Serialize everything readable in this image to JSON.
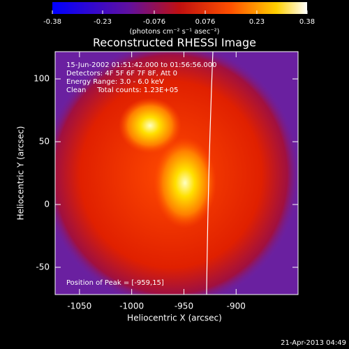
{
  "chart_data": {
    "type": "image",
    "title": "Reconstructed RHESSI Image",
    "colorbar": {
      "label": "(photons cm⁻² s⁻¹ asec⁻²)",
      "lim": [
        -0.38,
        0.38
      ],
      "ticks": [
        -0.38,
        -0.23,
        -0.076,
        0.076,
        0.23,
        0.38
      ]
    },
    "annotations": [
      "15-Jun-2002 01:51:42.000 to 01:56:56.000",
      "Detectors: 4F 5F 6F 7F 8F, Att 0",
      "Energy Range: 3.0 - 6.0 keV",
      "Clean     Total counts: 1.23E+05"
    ],
    "peak_label": "Position of Peak = [-959,15]",
    "x_label": "Heliocentric X (arcsec)",
    "y_label": "Heliocentric Y (arcsec)",
    "xlim": [
      -1073.3,
      -840.7
    ],
    "xticks": [
      -1050,
      -1000,
      -950,
      -900
    ],
    "ylim": [
      -71.7,
      121.7
    ],
    "yticks": [
      -50,
      0,
      50,
      100
    ],
    "footer": "21-Apr-2013 04:49"
  }
}
